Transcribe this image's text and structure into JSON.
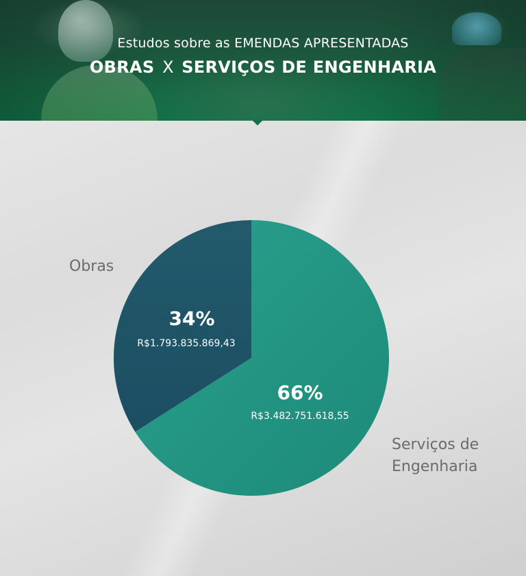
{
  "header": {
    "subtitle": "Estudos sobre as EMENDAS APRESENTADAS",
    "title_left": "OBRAS",
    "title_sep": "X",
    "title_right": "SERVIÇOS DE ENGENHARIA"
  },
  "colors": {
    "obras": "#1f5368",
    "servicos": "#24917f",
    "header": "#1a5e40"
  },
  "chart_data": {
    "type": "pie",
    "title": "",
    "series": [
      {
        "name": "Obras",
        "percent": 34,
        "percent_label": "34%",
        "value": 1793835869.43,
        "value_label": "R$1.793.835.869,43"
      },
      {
        "name": "Serviços de Engenharia",
        "percent": 66,
        "percent_label": "66%",
        "value": 3482751618.55,
        "value_label": "R$3.482.751.618,55"
      }
    ],
    "legend": [
      "Obras",
      "Serviços de Engenharia"
    ]
  },
  "labels": {
    "obras": "Obras",
    "servicos_line1": "Serviços de",
    "servicos_line2": "Engenharia"
  }
}
